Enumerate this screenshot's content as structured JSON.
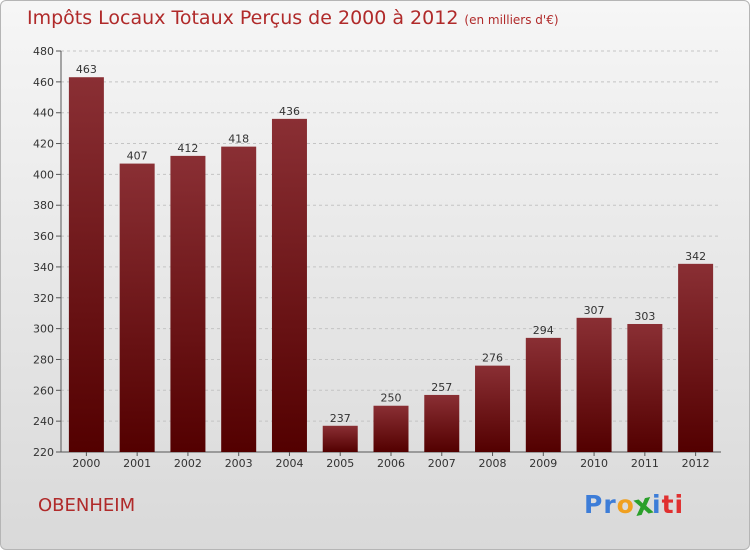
{
  "chart_data": {
    "type": "bar",
    "title": "Impôts Locaux Totaux Perçus de 2000 à 2012",
    "subtitle": "(en milliers d'€)",
    "categories": [
      "2000",
      "2001",
      "2002",
      "2003",
      "2004",
      "2005",
      "2006",
      "2007",
      "2008",
      "2009",
      "2010",
      "2011",
      "2012"
    ],
    "values": [
      463,
      407,
      412,
      418,
      436,
      237,
      250,
      257,
      276,
      294,
      307,
      303,
      342
    ],
    "ylim": [
      220,
      480
    ],
    "yticks": [
      220,
      240,
      260,
      280,
      300,
      320,
      340,
      360,
      380,
      400,
      420,
      440,
      460,
      480
    ],
    "xlabel": "",
    "ylabel": "",
    "grid": true,
    "bar_color": "#7a0f0f"
  },
  "commune": "OBENHEIM",
  "logo": {
    "letters": [
      "P",
      "r",
      "o",
      "x",
      "i",
      "t",
      "i"
    ],
    "colors": [
      "#3d7dd8",
      "#3d7dd8",
      "#f0a020",
      "#2aa02a",
      "#3d7dd8",
      "#e03030",
      "#e03030"
    ]
  }
}
